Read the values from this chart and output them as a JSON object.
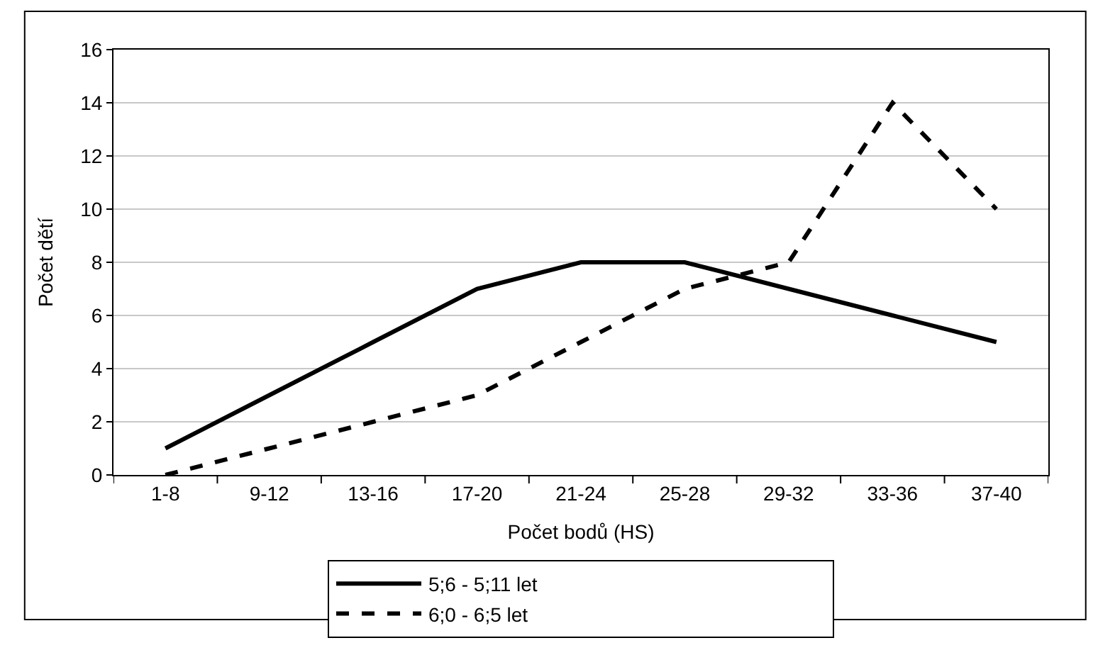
{
  "chart_data": {
    "type": "line",
    "xlabel": "Počet bodů (HS)",
    "ylabel": "Počet dětí",
    "categories": [
      "1-8",
      "9-12",
      "13-16",
      "17-20",
      "21-24",
      "25-28",
      "29-32",
      "33-36",
      "37-40"
    ],
    "series": [
      {
        "name": "5;6 - 5;11 let",
        "color": "#000000",
        "line_style": "solid",
        "values": [
          1,
          3,
          5,
          7,
          8,
          8,
          7,
          6,
          5
        ]
      },
      {
        "name": "6;0 - 6;5 let",
        "color": "#000000",
        "line_style": "dashed",
        "values": [
          0,
          1,
          2,
          3,
          5,
          7,
          8,
          14,
          10
        ]
      }
    ],
    "ylim": [
      0,
      16
    ],
    "yticks": [
      0,
      2,
      4,
      6,
      8,
      10,
      12,
      14,
      16
    ],
    "grid": "y",
    "legend": "bottom",
    "marker": "none"
  }
}
